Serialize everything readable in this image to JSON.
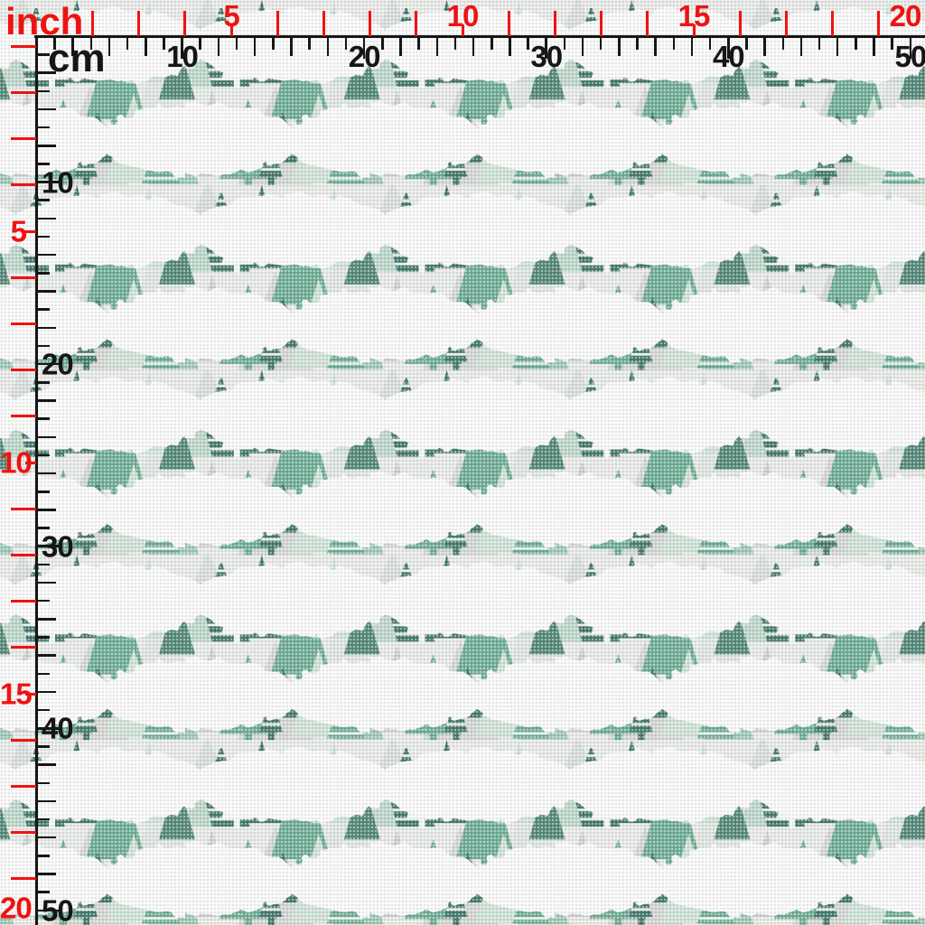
{
  "page": {
    "description": "Fabric swatch preview with inch and centimeter rulers over a winter forest print"
  },
  "rulers": {
    "inch": {
      "unit_label": "inch",
      "labels": [
        "5",
        "10",
        "15",
        "20"
      ],
      "color": "#ee1312"
    },
    "cm": {
      "unit_label": "cm",
      "labels": [
        "10",
        "20",
        "30",
        "40",
        "50"
      ],
      "color": "#161616"
    }
  },
  "pattern": {
    "description": "Teal and green triangle pine trees, some with white horizontal stripes, with rough-edged white snow cloud ovals on woven canvas",
    "colors": {
      "background": "#e8eae8",
      "teal": "#6aab93",
      "teal_light": "#9cc7b6",
      "green_dark": "#3f7467",
      "green_mid": "#4f8575",
      "mint_pale": "#cfe2d7",
      "gray": "#cdd0cd",
      "gray_light": "#dfe2df",
      "cloud_white": "#fafbfa"
    }
  }
}
